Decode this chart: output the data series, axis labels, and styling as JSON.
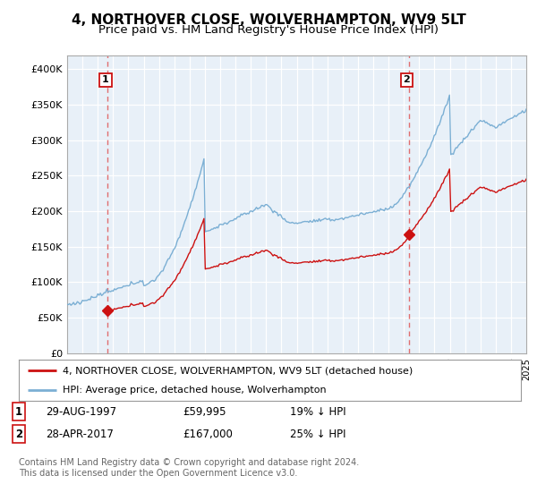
{
  "title": "4, NORTHOVER CLOSE, WOLVERHAMPTON, WV9 5LT",
  "subtitle": "Price paid vs. HM Land Registry's House Price Index (HPI)",
  "title_fontsize": 11,
  "subtitle_fontsize": 9.5,
  "hpi_color": "#7bafd4",
  "hpi_fill": "#ddeeff",
  "price_color": "#cc1111",
  "marker_color": "#cc1111",
  "vline_color": "#e06060",
  "background_color": "#ffffff",
  "grid_color": "#cccccc",
  "ylim": [
    0,
    420000
  ],
  "yticks": [
    0,
    50000,
    100000,
    150000,
    200000,
    250000,
    300000,
    350000,
    400000
  ],
  "ytick_labels": [
    "£0",
    "£50K",
    "£100K",
    "£150K",
    "£200K",
    "£250K",
    "£300K",
    "£350K",
    "£400K"
  ],
  "sale1_year": 1997.66,
  "sale1_price": 59995,
  "sale2_year": 2017.33,
  "sale2_price": 167000,
  "legend_line1": "4, NORTHOVER CLOSE, WOLVERHAMPTON, WV9 5LT (detached house)",
  "legend_line2": "HPI: Average price, detached house, Wolverhampton",
  "note1_date": "29-AUG-1997",
  "note1_price": "£59,995",
  "note1_hpi": "19% ↓ HPI",
  "note2_date": "28-APR-2017",
  "note2_price": "£167,000",
  "note2_hpi": "25% ↓ HPI",
  "footer": "Contains HM Land Registry data © Crown copyright and database right 2024.\nThis data is licensed under the Open Government Licence v3.0.",
  "xmin": 1995,
  "xmax": 2025
}
